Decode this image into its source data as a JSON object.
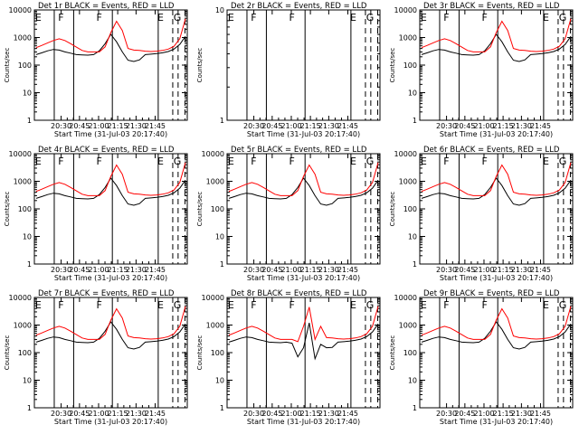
{
  "colors": {
    "events": "#000000",
    "lld": "#ff0000",
    "axes": "#000000",
    "background": "#ffffff"
  },
  "chart_data": [
    {
      "type": "line",
      "id": "det1r",
      "title": "Det 1r BLACK = Events, RED = LLD",
      "xlabel": "Start Time (31-Jul-03 20:17:40)",
      "ylabel": "Counts/sec",
      "yscale": "log",
      "ylim": [
        1,
        10000
      ],
      "yticks": [
        "1",
        "10",
        "100",
        "1000",
        "10000"
      ],
      "xticks": [
        "20:30",
        "20:45",
        "21:00",
        "21:15",
        "21:30",
        "21:45"
      ],
      "markers": [
        "E",
        "F",
        "F",
        "E",
        "G"
      ],
      "series": [
        {
          "name": "Events",
          "color": "#000000",
          "values": [
            240,
            280,
            330,
            370,
            350,
            300,
            270,
            240,
            235,
            230,
            240,
            330,
            600,
            1300,
            700,
            300,
            150,
            135,
            155,
            240,
            250,
            260,
            280,
            310,
            380,
            560,
            1100
          ]
        },
        {
          "name": "LLD",
          "color": "#ff0000",
          "values": [
            430,
            520,
            640,
            780,
            900,
            780,
            600,
            450,
            340,
            300,
            300,
            300,
            460,
            1500,
            3900,
            1800,
            400,
            350,
            340,
            320,
            310,
            320,
            340,
            380,
            480,
            900,
            4800
          ]
        }
      ]
    },
    {
      "type": "line",
      "id": "det2r",
      "title": "Det 2r BLACK = Events, RED = LLD",
      "xlabel": "Start Time (31-Jul-03 20:17:40)",
      "ylabel": "Counts/sec",
      "yscale": "log",
      "ylim": [
        1,
        10
      ],
      "yticks": [
        "1",
        "10"
      ],
      "xticks": [
        "20:30",
        "20:45",
        "21:00",
        "21:15",
        "21:30",
        "21:45"
      ],
      "markers": [
        "E",
        "F",
        "F",
        "E",
        "G"
      ],
      "series": []
    },
    {
      "type": "line",
      "id": "det3r",
      "title": "Det 3r BLACK = Events, RED = LLD",
      "xlabel": "Start Time (31-Jul-03 20:17:40)",
      "ylabel": "Counts/sec",
      "yscale": "log",
      "ylim": [
        1,
        10000
      ],
      "yticks": [
        "1",
        "10",
        "100",
        "1000",
        "10000"
      ],
      "xticks": [
        "20:30",
        "20:45",
        "21:00",
        "21:15",
        "21:30",
        "21:45"
      ],
      "markers": [
        "E",
        "F",
        "F",
        "E",
        "G"
      ],
      "series": [
        {
          "name": "Events",
          "color": "#000000",
          "values": [
            240,
            280,
            330,
            370,
            350,
            300,
            270,
            240,
            235,
            230,
            240,
            330,
            600,
            1300,
            700,
            300,
            150,
            135,
            155,
            240,
            250,
            260,
            280,
            310,
            380,
            560,
            1100
          ]
        },
        {
          "name": "LLD",
          "color": "#ff0000",
          "values": [
            430,
            520,
            640,
            780,
            900,
            780,
            600,
            450,
            340,
            300,
            300,
            300,
            460,
            1500,
            3900,
            1800,
            400,
            350,
            340,
            320,
            310,
            320,
            340,
            380,
            480,
            900,
            4800
          ]
        }
      ]
    },
    {
      "type": "line",
      "id": "det4r",
      "title": "Det 4r BLACK = Events, RED = LLD",
      "xlabel": "Start Time (31-Jul-03 20:17:40)",
      "ylabel": "Counts/sec",
      "yscale": "log",
      "ylim": [
        1,
        10000
      ],
      "yticks": [
        "1",
        "10",
        "100",
        "1000",
        "10000"
      ],
      "xticks": [
        "20:30",
        "20:45",
        "21:00",
        "21:15",
        "21:30",
        "21:45"
      ],
      "markers": [
        "E",
        "F",
        "F",
        "E",
        "G"
      ],
      "series": [
        {
          "name": "Events",
          "color": "#000000",
          "values": [
            240,
            280,
            330,
            370,
            350,
            300,
            270,
            240,
            235,
            230,
            240,
            330,
            600,
            1300,
            700,
            300,
            150,
            135,
            155,
            240,
            250,
            260,
            280,
            310,
            380,
            560,
            1100
          ]
        },
        {
          "name": "LLD",
          "color": "#ff0000",
          "values": [
            430,
            520,
            640,
            780,
            900,
            780,
            600,
            450,
            340,
            300,
            300,
            300,
            460,
            1500,
            3900,
            1800,
            400,
            350,
            340,
            320,
            310,
            320,
            340,
            380,
            480,
            900,
            4800
          ]
        }
      ]
    },
    {
      "type": "line",
      "id": "det5r",
      "title": "Det 5r BLACK = Events, RED = LLD",
      "xlabel": "Start Time (31-Jul-03 20:17:40)",
      "ylabel": "Counts/sec",
      "yscale": "log",
      "ylim": [
        1,
        10000
      ],
      "yticks": [
        "1",
        "10",
        "100",
        "1000",
        "10000"
      ],
      "xticks": [
        "20:30",
        "20:45",
        "21:00",
        "21:15",
        "21:30",
        "21:45"
      ],
      "markers": [
        "E",
        "F",
        "F",
        "E",
        "G"
      ],
      "series": [
        {
          "name": "Events",
          "color": "#000000",
          "values": [
            240,
            280,
            330,
            370,
            350,
            300,
            270,
            240,
            235,
            230,
            240,
            330,
            600,
            1300,
            700,
            300,
            150,
            135,
            155,
            240,
            250,
            260,
            280,
            310,
            380,
            560,
            1100
          ]
        },
        {
          "name": "LLD",
          "color": "#ff0000",
          "values": [
            430,
            520,
            640,
            780,
            900,
            780,
            600,
            450,
            340,
            300,
            300,
            300,
            460,
            1500,
            3900,
            1800,
            400,
            350,
            340,
            320,
            310,
            320,
            340,
            380,
            480,
            900,
            4800
          ]
        }
      ]
    },
    {
      "type": "line",
      "id": "det6r",
      "title": "Det 6r BLACK = Events, RED = LLD",
      "xlabel": "Start Time (31-Jul-03 20:17:40)",
      "ylabel": "Counts/sec",
      "yscale": "log",
      "ylim": [
        1,
        10000
      ],
      "yticks": [
        "1",
        "10",
        "100",
        "1000",
        "10000"
      ],
      "xticks": [
        "20:30",
        "20:45",
        "21:00",
        "21:15",
        "21:30",
        "21:45"
      ],
      "markers": [
        "E",
        "F",
        "F",
        "E",
        "G"
      ],
      "series": [
        {
          "name": "Events",
          "color": "#000000",
          "values": [
            240,
            280,
            330,
            370,
            350,
            300,
            270,
            240,
            235,
            230,
            240,
            330,
            600,
            1300,
            700,
            300,
            150,
            135,
            155,
            240,
            250,
            260,
            280,
            310,
            380,
            560,
            1100
          ]
        },
        {
          "name": "LLD",
          "color": "#ff0000",
          "values": [
            430,
            520,
            640,
            780,
            900,
            780,
            600,
            450,
            340,
            300,
            300,
            300,
            460,
            1500,
            3900,
            1800,
            400,
            350,
            340,
            320,
            310,
            320,
            340,
            380,
            480,
            900,
            4800
          ]
        }
      ]
    },
    {
      "type": "line",
      "id": "det7r",
      "title": "Det 7r BLACK = Events, RED = LLD",
      "xlabel": "Start Time (31-Jul-03 20:17:40)",
      "ylabel": "Counts/sec",
      "yscale": "log",
      "ylim": [
        1,
        10000
      ],
      "yticks": [
        "1",
        "10",
        "100",
        "1000",
        "10000"
      ],
      "xticks": [
        "20:30",
        "20:45",
        "21:00",
        "21:15",
        "21:30",
        "21:45"
      ],
      "markers": [
        "E",
        "F",
        "F",
        "E",
        "G"
      ],
      "series": [
        {
          "name": "Events",
          "color": "#000000",
          "values": [
            240,
            280,
            330,
            370,
            350,
            300,
            270,
            240,
            235,
            230,
            240,
            330,
            600,
            1300,
            700,
            300,
            150,
            135,
            155,
            240,
            250,
            260,
            280,
            310,
            380,
            560,
            1100
          ]
        },
        {
          "name": "LLD",
          "color": "#ff0000",
          "values": [
            430,
            520,
            640,
            780,
            900,
            780,
            600,
            450,
            340,
            300,
            300,
            300,
            460,
            1500,
            3900,
            1800,
            400,
            350,
            340,
            320,
            310,
            320,
            340,
            380,
            480,
            900,
            4800
          ]
        }
      ]
    },
    {
      "type": "line",
      "id": "det8r",
      "title": "Det 8r BLACK = Events, RED = LLD",
      "xlabel": "Start Time (31-Jul-03 20:17:40)",
      "ylabel": "Counts/sec",
      "yscale": "log",
      "ylim": [
        1,
        10000
      ],
      "yticks": [
        "1",
        "10",
        "100",
        "1000",
        "10000"
      ],
      "xticks": [
        "20:30",
        "20:45",
        "21:00",
        "21:15",
        "21:30",
        "21:45"
      ],
      "markers": [
        "E",
        "F",
        "F",
        "E",
        "G"
      ],
      "series": [
        {
          "name": "Events",
          "color": "#000000",
          "values": [
            240,
            280,
            330,
            370,
            350,
            300,
            270,
            240,
            235,
            230,
            240,
            220,
            70,
            150,
            1200,
            60,
            200,
            150,
            155,
            240,
            250,
            260,
            280,
            310,
            380,
            560,
            1100
          ]
        },
        {
          "name": "LLD",
          "color": "#ff0000",
          "values": [
            430,
            520,
            640,
            780,
            900,
            780,
            600,
            450,
            340,
            300,
            300,
            300,
            250,
            900,
            4500,
            300,
            900,
            350,
            340,
            320,
            310,
            320,
            340,
            380,
            480,
            900,
            4800
          ]
        }
      ]
    },
    {
      "type": "line",
      "id": "det9r",
      "title": "Det 9r BLACK = Events, RED = LLD",
      "xlabel": "Start Time (31-Jul-03 20:17:40)",
      "ylabel": "Counts/sec",
      "yscale": "log",
      "ylim": [
        1,
        10000
      ],
      "yticks": [
        "1",
        "10",
        "100",
        "1000",
        "10000"
      ],
      "xticks": [
        "20:30",
        "20:45",
        "21:00",
        "21:15",
        "21:30",
        "21:45"
      ],
      "markers": [
        "E",
        "F",
        "F",
        "E",
        "G"
      ],
      "series": [
        {
          "name": "Events",
          "color": "#000000",
          "values": [
            240,
            280,
            330,
            370,
            350,
            300,
            270,
            240,
            235,
            230,
            240,
            330,
            600,
            1300,
            700,
            300,
            150,
            135,
            155,
            240,
            250,
            260,
            280,
            310,
            380,
            560,
            1100
          ]
        },
        {
          "name": "LLD",
          "color": "#ff0000",
          "values": [
            430,
            520,
            640,
            780,
            900,
            780,
            600,
            450,
            340,
            300,
            300,
            300,
            460,
            1500,
            3900,
            1800,
            400,
            350,
            340,
            320,
            310,
            320,
            340,
            380,
            480,
            900,
            4800
          ]
        }
      ]
    }
  ]
}
